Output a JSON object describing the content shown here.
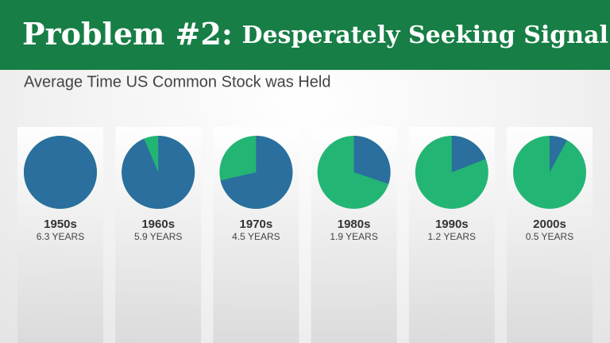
{
  "header": {
    "title": [
      "Problem #2:",
      "Desperately Seeking Signal"
    ]
  },
  "chart_data": {
    "type": "pie",
    "title": "Average Time US Common Stock was Held",
    "categories": [
      "1950s",
      "1960s",
      "1970s",
      "1980s",
      "1990s",
      "2000s"
    ],
    "values": [
      6.3,
      5.9,
      4.5,
      1.9,
      1.2,
      0.5
    ],
    "value_labels": [
      "6.3 YEARS",
      "5.9 YEARS",
      "4.5 YEARS",
      "1.9 YEARS",
      "1.2 YEARS",
      "0.5 YEARS"
    ],
    "color": "#2a6f9d",
    "rest_color": "#23b574"
  }
}
